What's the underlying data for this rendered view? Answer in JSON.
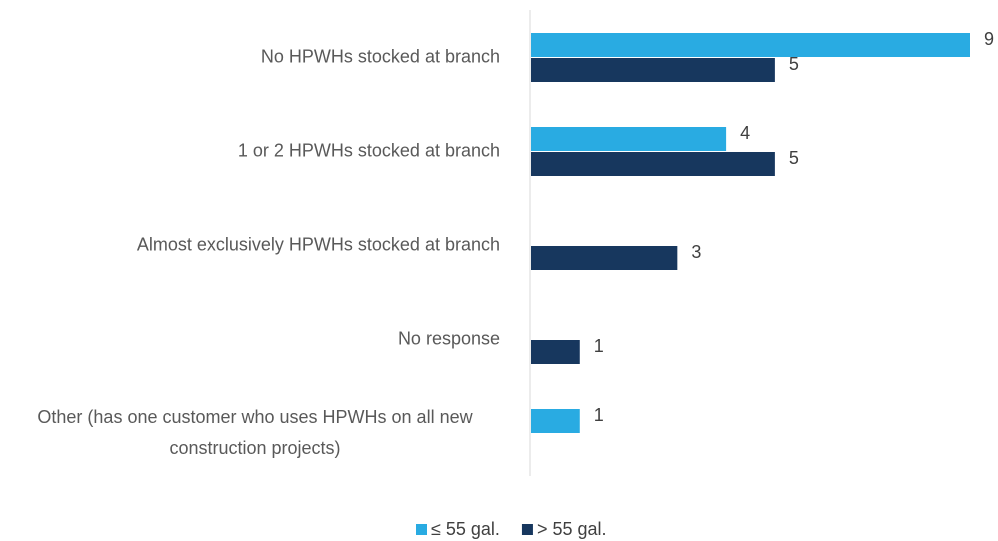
{
  "chart_data": {
    "type": "bar",
    "orientation": "horizontal",
    "categories": [
      "No HPWHs stocked at branch",
      "1 or 2 HPWHs stocked at branch",
      "Almost exclusively HPWHs stocked at branch",
      "No response",
      "Other (has one customer who uses HPWHs on all new construction projects)"
    ],
    "series": [
      {
        "name": "≤ 55 gal.",
        "color": "#29abe2",
        "values": [
          9,
          4,
          null,
          null,
          1
        ]
      },
      {
        "name": "> 55 gal.",
        "color": "#17375e",
        "values": [
          5,
          5,
          3,
          1,
          null
        ]
      }
    ],
    "legend": "bottom"
  }
}
